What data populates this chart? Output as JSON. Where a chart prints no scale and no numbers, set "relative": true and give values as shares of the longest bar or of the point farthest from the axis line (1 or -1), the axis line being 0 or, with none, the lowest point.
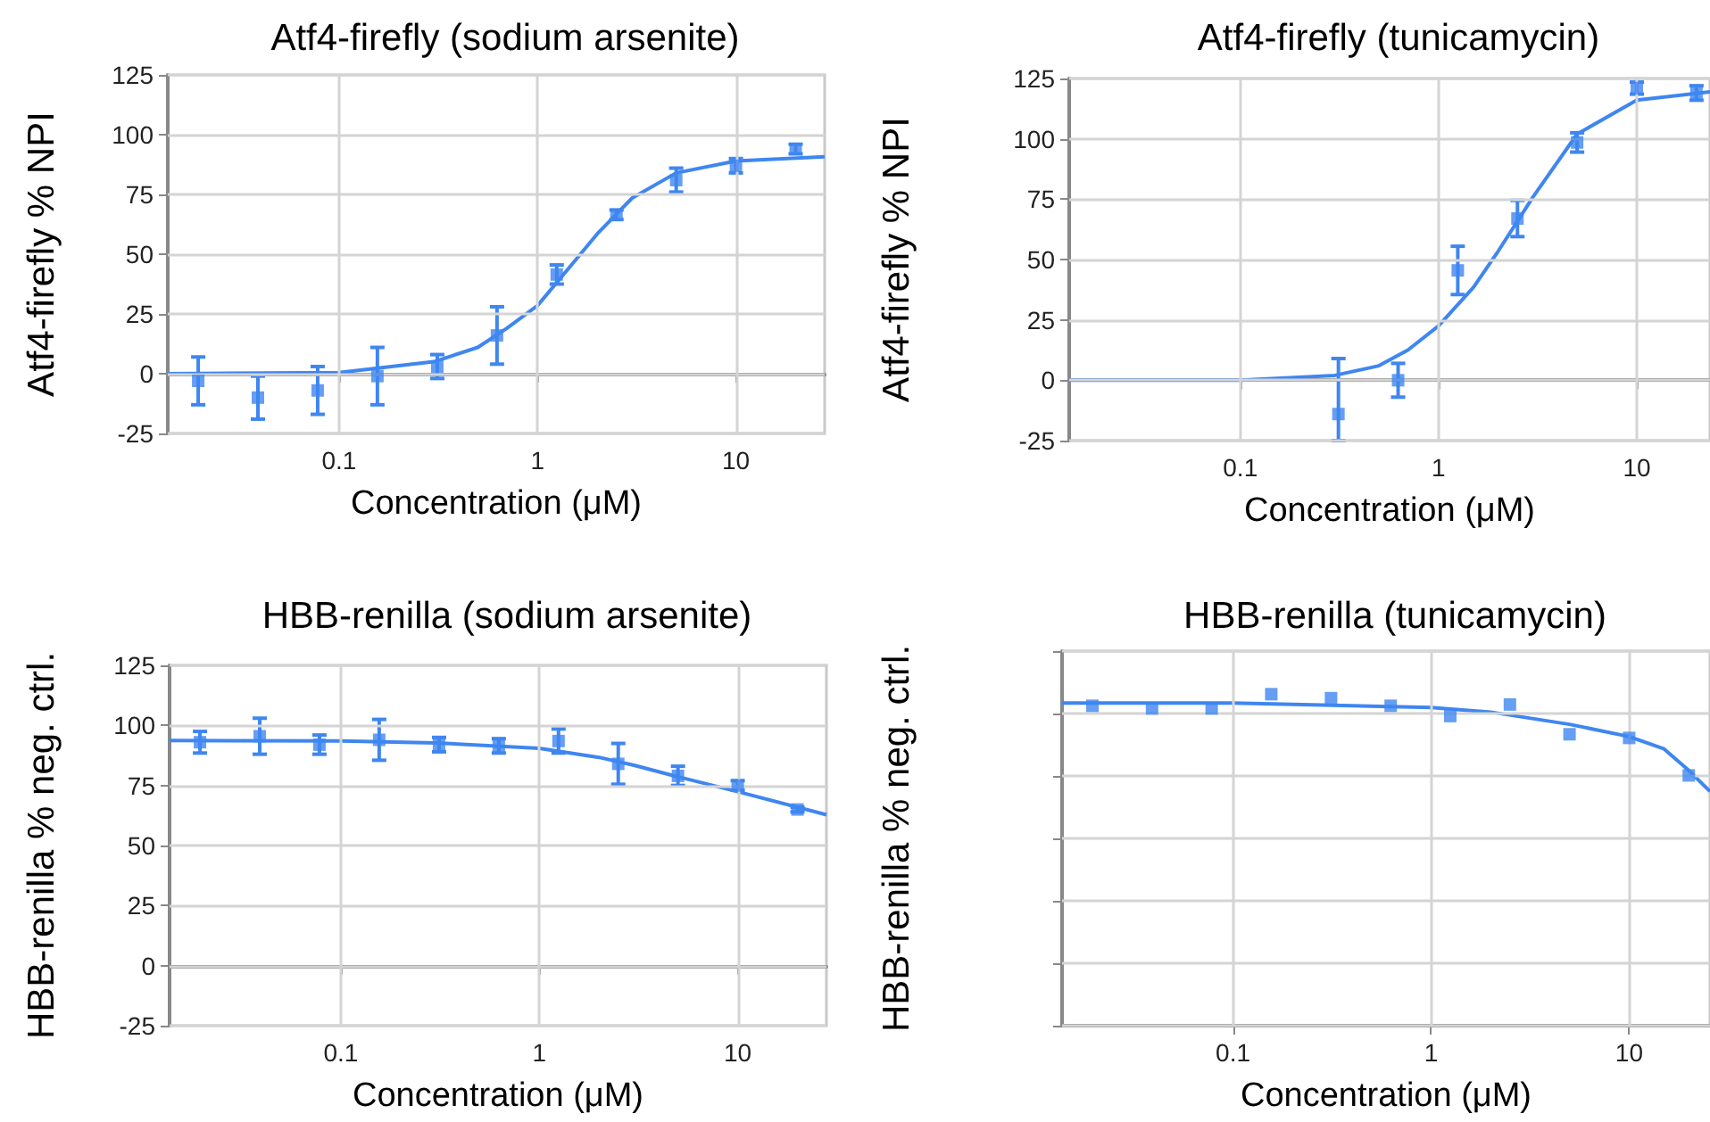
{
  "chart_data": [
    {
      "type": "scatter",
      "title": "Atf4-firefly (sodium arsenite)",
      "xlabel": "Concentration (μM)",
      "ylabel": "Atf4-firefly % NPI",
      "log": "x",
      "grid": true,
      "xlim": [
        0.0137,
        28
      ],
      "xticks": [
        0.1,
        1,
        10
      ],
      "ylim": [
        -25,
        125
      ],
      "yticks": [
        -25,
        0,
        25,
        50,
        75,
        100,
        125
      ],
      "series": [
        {
          "marker": "square",
          "color": "#3f86f0",
          "x": [
            0.0195,
            0.039,
            0.078,
            0.156,
            0.3125,
            0.625,
            1.25,
            2.5,
            5,
            10,
            20
          ],
          "values": [
            -3,
            -10,
            -7,
            -1,
            3,
            16,
            41.5,
            66.5,
            81,
            87,
            94
          ],
          "errors": [
            10,
            9,
            10,
            12,
            5,
            12,
            4,
            2,
            5,
            3,
            2
          ]
        },
        {
          "type": "line",
          "marker": "none",
          "color": "#3f86f0",
          "x": [
            0.0137,
            0.1,
            0.3,
            0.5,
            0.7,
            1,
            1.5,
            2,
            3,
            5,
            10,
            28
          ],
          "values": [
            0,
            0.5,
            5,
            11,
            19,
            28.5,
            46,
            58.5,
            73.5,
            84,
            89,
            90.8
          ]
        }
      ]
    },
    {
      "type": "scatter",
      "title": "Atf4-firefly (tunicamycin)",
      "xlabel": "Concentration (μM)",
      "ylabel": "Atf4-firefly % NPI",
      "log": "x",
      "grid": true,
      "xlim": [
        0.0137,
        23.4
      ],
      "xticks": [
        0.1,
        1,
        10
      ],
      "ylim": [
        -25,
        125
      ],
      "yticks": [
        -25,
        0,
        25,
        50,
        75,
        100,
        125
      ],
      "series": [
        {
          "marker": "square",
          "color": "#3f86f0",
          "x": [
            0.3125,
            0.625,
            1.25,
            2.5,
            5,
            10,
            20
          ],
          "values": [
            -14,
            0,
            45.5,
            67,
            98.5,
            121,
            119
          ],
          "errors": [
            [
              -25,
              9
            ],
            7,
            10,
            7.5,
            4,
            2.5,
            3
          ]
        },
        {
          "type": "line",
          "marker": "none",
          "color": "#3f86f0",
          "x": [
            0.0137,
            0.1,
            0.3,
            0.5,
            0.7,
            1,
            1.5,
            2,
            3,
            5,
            10,
            23.4
          ],
          "values": [
            0,
            0,
            2,
            6,
            12.5,
            22.5,
            38.5,
            53.5,
            76,
            102,
            116,
            119.5
          ]
        }
      ]
    },
    {
      "type": "scatter",
      "title": "HBB-renilla (sodium arsenite)",
      "xlabel": "Concentration (μM)",
      "ylabel": "HBB-renilla % neg. ctrl.",
      "log": "x",
      "grid": true,
      "xlim": [
        0.0137,
        28
      ],
      "xticks": [
        0.1,
        1,
        10
      ],
      "ylim": [
        -25,
        125
      ],
      "yticks": [
        -25,
        0,
        25,
        50,
        75,
        100,
        125
      ],
      "series": [
        {
          "marker": "square",
          "color": "#3f86f0",
          "x": [
            0.0195,
            0.039,
            0.078,
            0.156,
            0.3125,
            0.625,
            1.25,
            2.5,
            5,
            10,
            20
          ],
          "values": [
            93,
            95.5,
            92,
            94,
            92,
            91.5,
            93.5,
            84,
            79,
            75,
            65
          ],
          "errors": [
            4.5,
            7.5,
            4,
            8.5,
            3,
            3,
            5,
            8.5,
            4,
            2,
            1
          ]
        },
        {
          "type": "line",
          "marker": "none",
          "color": "#3f86f0",
          "x": [
            0.0137,
            0.1,
            0.3,
            1,
            2,
            3,
            5,
            10,
            28
          ],
          "values": [
            93.7,
            93.5,
            92.7,
            90.5,
            86.7,
            83.4,
            78.6,
            72.4,
            62.8
          ]
        }
      ]
    },
    {
      "type": "scatter",
      "title": "HBB-renilla (tunicamycin)",
      "xlabel": "Concentration (μM)",
      "ylabel": "HBB-renilla % neg. ctrl.",
      "log": "x",
      "grid": true,
      "tick_labels": "x",
      "relative": true,
      "xlim": [
        0.0137,
        25.6
      ],
      "xticks": [
        0.1,
        1,
        10
      ],
      "series": [
        {
          "marker": "square",
          "color": "#3f86f0",
          "x": [
            0.0195,
            0.039,
            0.078,
            0.156,
            0.3125,
            0.625,
            1.25,
            2.5,
            5,
            10,
            20
          ],
          "values": [
            0.965,
            0.957,
            0.957,
            1,
            0.988,
            0.965,
            0.934,
            0.969,
            0.879,
            0.868,
            0.755
          ]
        },
        {
          "type": "line",
          "marker": "none",
          "color": "#3f86f0",
          "x": [
            0.0137,
            0.1,
            1,
            2,
            5,
            10,
            15,
            20,
            25.6
          ],
          "values": [
            0.973,
            0.973,
            0.96,
            0.946,
            0.909,
            0.872,
            0.835,
            0.77,
            0.707
          ]
        }
      ]
    }
  ]
}
